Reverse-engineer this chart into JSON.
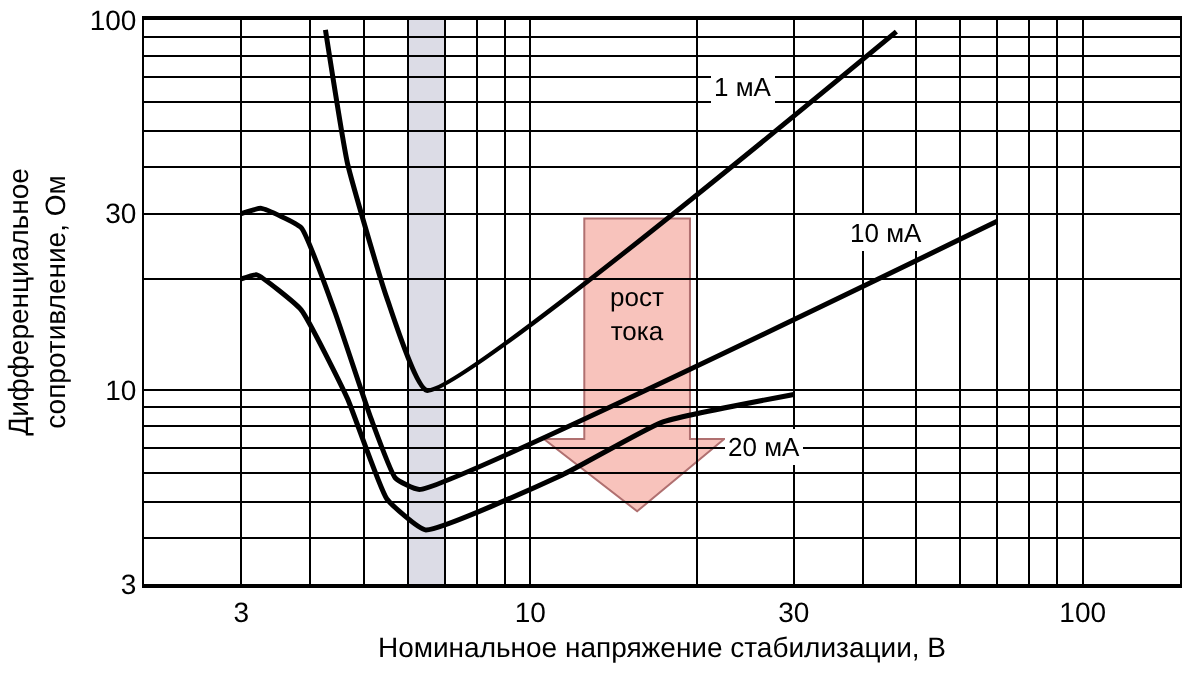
{
  "chart_data": {
    "type": "line",
    "xlabel": "Номинальное напряжение стабилизации, В",
    "ylabel": "Дифференциальное\nсопротивление, Ом",
    "log": "xy",
    "grid": true,
    "marker": "none",
    "line_style": "solid",
    "xlim": [
      2,
      150
    ],
    "ylim": [
      3,
      100
    ],
    "xticks": [
      3,
      {
        "value": 4,
        "label": null
      },
      {
        "value": 5,
        "label": null
      },
      {
        "value": 6,
        "label": null
      },
      {
        "value": 7,
        "label": null
      },
      {
        "value": 8,
        "label": null
      },
      {
        "value": 9,
        "label": null
      },
      10,
      {
        "value": 20,
        "label": null
      },
      30,
      {
        "value": 40,
        "label": null
      },
      {
        "value": 50,
        "label": null
      },
      {
        "value": 60,
        "label": null
      },
      {
        "value": 70,
        "label": null
      },
      {
        "value": 80,
        "label": null
      },
      {
        "value": 90,
        "label": null
      },
      100
    ],
    "yticks": [
      3,
      {
        "value": 4,
        "label": null
      },
      {
        "value": 5,
        "label": null
      },
      {
        "value": 6,
        "label": null
      },
      {
        "value": 7,
        "label": null
      },
      {
        "value": 8,
        "label": null
      },
      {
        "value": 9,
        "label": null
      },
      10,
      {
        "value": 20,
        "label": null
      },
      30,
      {
        "value": 40,
        "label": null
      },
      {
        "value": 50,
        "label": null
      },
      {
        "value": 60,
        "label": null
      },
      {
        "value": 70,
        "label": null
      },
      {
        "value": 80,
        "label": null
      },
      {
        "value": 90,
        "label": null
      },
      100
    ],
    "bands": [
      {
        "axis": "x",
        "from": 6,
        "to": 7,
        "color": "#dcdce6"
      }
    ],
    "series": [
      {
        "name": "1 мА",
        "color": "#000000",
        "x": [
          4.26,
          4.67,
          5.5,
          6.5,
          46
        ],
        "values": [
          94,
          41,
          17.8,
          10,
          93
        ]
      },
      {
        "name": "10 мА",
        "color": "#000000",
        "x": [
          3,
          3.26,
          3.85,
          4.43,
          5.15,
          5.7,
          6.3,
          70
        ],
        "values": [
          30,
          31,
          27.5,
          16.3,
          8.4,
          5.8,
          5.4,
          28.6
        ]
      },
      {
        "name": "20 мА",
        "color": "#000000",
        "x": [
          3,
          3.2,
          3.85,
          4.67,
          5.5,
          6.46,
          11.4,
          17.3,
          30
        ],
        "values": [
          20,
          20.5,
          16.5,
          9.5,
          5.1,
          4.2,
          5.9,
          8.2,
          9.75
        ]
      }
    ],
    "annotations": [
      "рост\nтока"
    ]
  }
}
